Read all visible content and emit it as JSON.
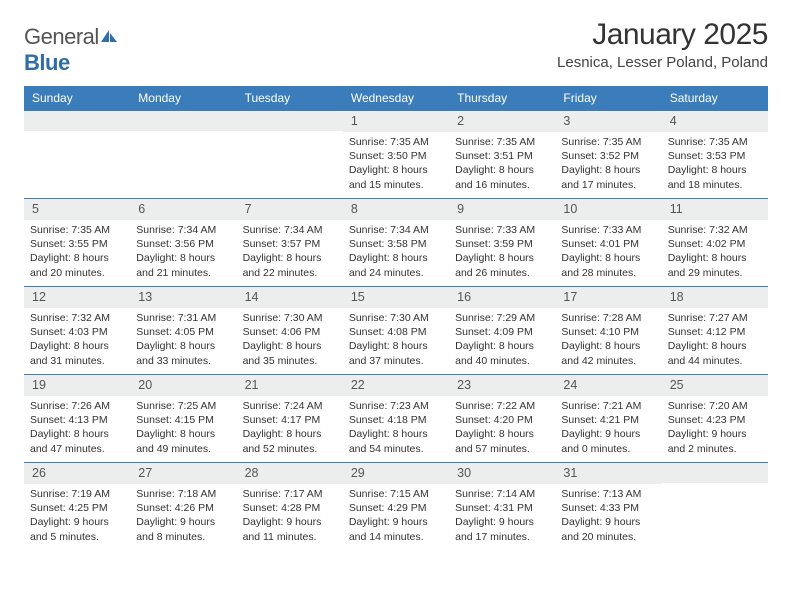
{
  "logo": {
    "text1": "General",
    "text2": "Blue"
  },
  "title": {
    "month": "January 2025",
    "location": "Lesnica, Lesser Poland, Poland"
  },
  "colors": {
    "header_bg": "#3b7dbb",
    "accent": "#2f6ca8",
    "daynum_bg": "#eceded",
    "page_bg": "#ffffff"
  },
  "dayNames": [
    "Sunday",
    "Monday",
    "Tuesday",
    "Wednesday",
    "Thursday",
    "Friday",
    "Saturday"
  ],
  "weeks": [
    [
      null,
      null,
      null,
      {
        "d": "1",
        "sr": "7:35 AM",
        "ss": "3:50 PM",
        "dh": "8",
        "dm": "15"
      },
      {
        "d": "2",
        "sr": "7:35 AM",
        "ss": "3:51 PM",
        "dh": "8",
        "dm": "16"
      },
      {
        "d": "3",
        "sr": "7:35 AM",
        "ss": "3:52 PM",
        "dh": "8",
        "dm": "17"
      },
      {
        "d": "4",
        "sr": "7:35 AM",
        "ss": "3:53 PM",
        "dh": "8",
        "dm": "18"
      }
    ],
    [
      {
        "d": "5",
        "sr": "7:35 AM",
        "ss": "3:55 PM",
        "dh": "8",
        "dm": "20"
      },
      {
        "d": "6",
        "sr": "7:34 AM",
        "ss": "3:56 PM",
        "dh": "8",
        "dm": "21"
      },
      {
        "d": "7",
        "sr": "7:34 AM",
        "ss": "3:57 PM",
        "dh": "8",
        "dm": "22"
      },
      {
        "d": "8",
        "sr": "7:34 AM",
        "ss": "3:58 PM",
        "dh": "8",
        "dm": "24"
      },
      {
        "d": "9",
        "sr": "7:33 AM",
        "ss": "3:59 PM",
        "dh": "8",
        "dm": "26"
      },
      {
        "d": "10",
        "sr": "7:33 AM",
        "ss": "4:01 PM",
        "dh": "8",
        "dm": "28"
      },
      {
        "d": "11",
        "sr": "7:32 AM",
        "ss": "4:02 PM",
        "dh": "8",
        "dm": "29"
      }
    ],
    [
      {
        "d": "12",
        "sr": "7:32 AM",
        "ss": "4:03 PM",
        "dh": "8",
        "dm": "31"
      },
      {
        "d": "13",
        "sr": "7:31 AM",
        "ss": "4:05 PM",
        "dh": "8",
        "dm": "33"
      },
      {
        "d": "14",
        "sr": "7:30 AM",
        "ss": "4:06 PM",
        "dh": "8",
        "dm": "35"
      },
      {
        "d": "15",
        "sr": "7:30 AM",
        "ss": "4:08 PM",
        "dh": "8",
        "dm": "37"
      },
      {
        "d": "16",
        "sr": "7:29 AM",
        "ss": "4:09 PM",
        "dh": "8",
        "dm": "40"
      },
      {
        "d": "17",
        "sr": "7:28 AM",
        "ss": "4:10 PM",
        "dh": "8",
        "dm": "42"
      },
      {
        "d": "18",
        "sr": "7:27 AM",
        "ss": "4:12 PM",
        "dh": "8",
        "dm": "44"
      }
    ],
    [
      {
        "d": "19",
        "sr": "7:26 AM",
        "ss": "4:13 PM",
        "dh": "8",
        "dm": "47"
      },
      {
        "d": "20",
        "sr": "7:25 AM",
        "ss": "4:15 PM",
        "dh": "8",
        "dm": "49"
      },
      {
        "d": "21",
        "sr": "7:24 AM",
        "ss": "4:17 PM",
        "dh": "8",
        "dm": "52"
      },
      {
        "d": "22",
        "sr": "7:23 AM",
        "ss": "4:18 PM",
        "dh": "8",
        "dm": "54"
      },
      {
        "d": "23",
        "sr": "7:22 AM",
        "ss": "4:20 PM",
        "dh": "8",
        "dm": "57"
      },
      {
        "d": "24",
        "sr": "7:21 AM",
        "ss": "4:21 PM",
        "dh": "9",
        "dm": "0"
      },
      {
        "d": "25",
        "sr": "7:20 AM",
        "ss": "4:23 PM",
        "dh": "9",
        "dm": "2"
      }
    ],
    [
      {
        "d": "26",
        "sr": "7:19 AM",
        "ss": "4:25 PM",
        "dh": "9",
        "dm": "5"
      },
      {
        "d": "27",
        "sr": "7:18 AM",
        "ss": "4:26 PM",
        "dh": "9",
        "dm": "8"
      },
      {
        "d": "28",
        "sr": "7:17 AM",
        "ss": "4:28 PM",
        "dh": "9",
        "dm": "11"
      },
      {
        "d": "29",
        "sr": "7:15 AM",
        "ss": "4:29 PM",
        "dh": "9",
        "dm": "14"
      },
      {
        "d": "30",
        "sr": "7:14 AM",
        "ss": "4:31 PM",
        "dh": "9",
        "dm": "17"
      },
      {
        "d": "31",
        "sr": "7:13 AM",
        "ss": "4:33 PM",
        "dh": "9",
        "dm": "20"
      },
      null
    ]
  ],
  "labels": {
    "sunrise": "Sunrise:",
    "sunset": "Sunset:",
    "daylight": "Daylight:",
    "hours": "hours",
    "and": "and",
    "minutes": "minutes."
  }
}
